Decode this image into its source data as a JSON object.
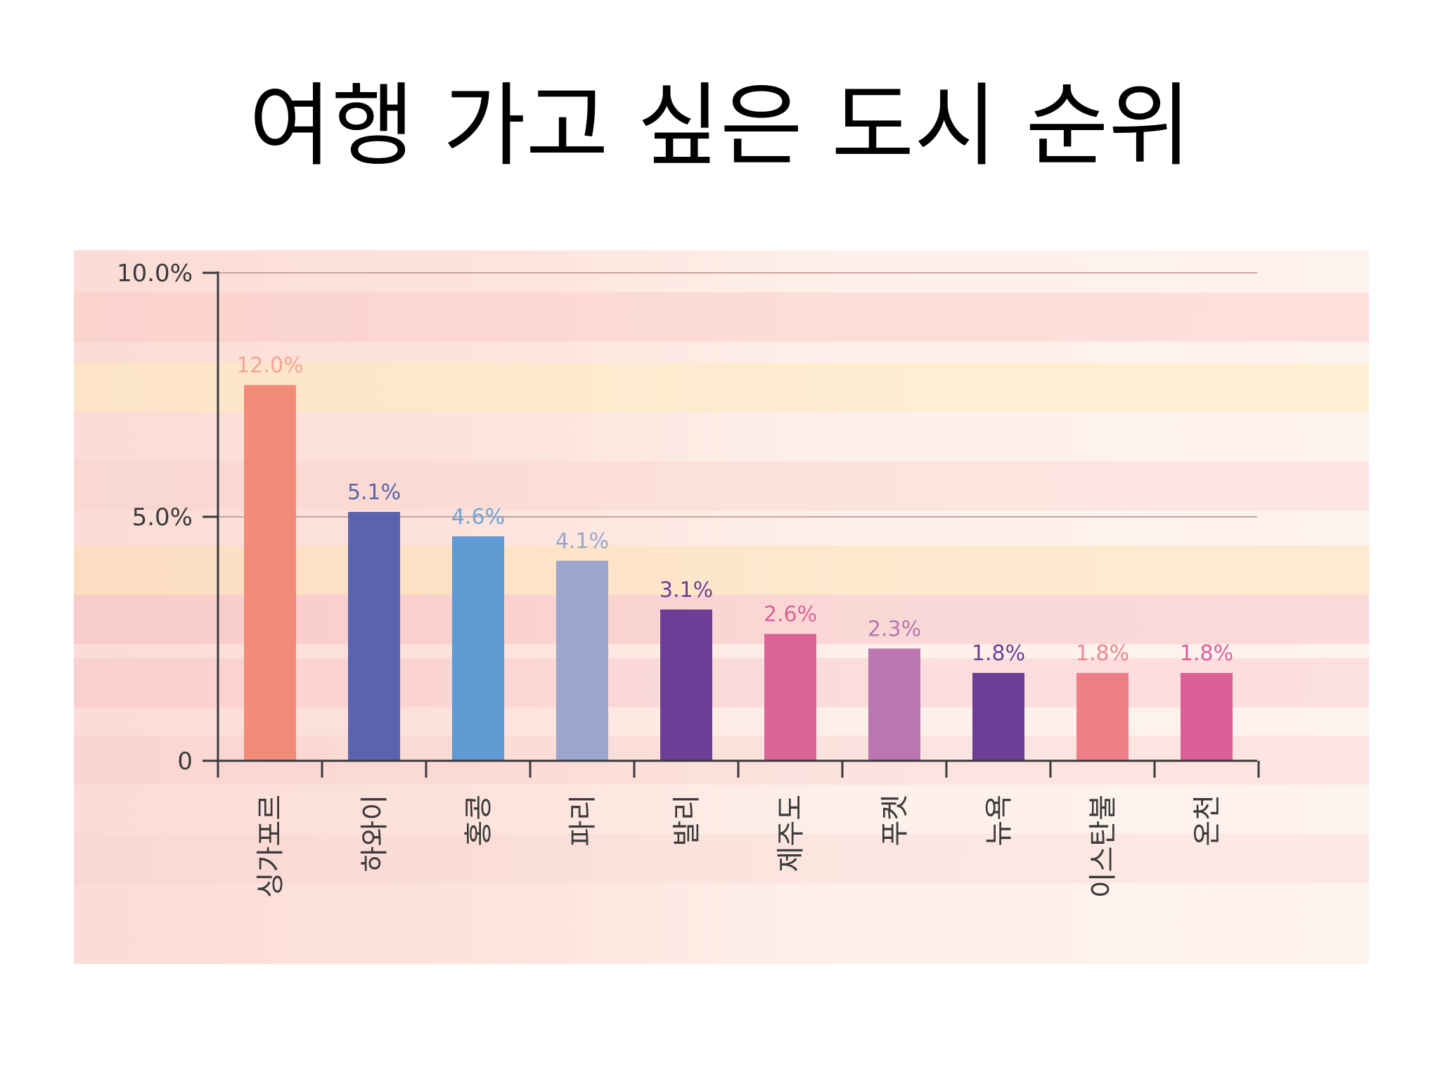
{
  "title": "여행 가고 싶은 도시 순위",
  "chart_data": {
    "type": "bar",
    "categories": [
      "싱가포르",
      "하와이",
      "홍콩",
      "파리",
      "발리",
      "제주도",
      "푸켓",
      "뉴욕",
      "이스탄불",
      "온천"
    ],
    "values": [
      12.0,
      5.1,
      4.6,
      4.1,
      3.1,
      2.6,
      2.3,
      1.8,
      1.8,
      1.8
    ],
    "value_labels": [
      "12.0%",
      "5.1%",
      "4.6%",
      "4.1%",
      "3.1%",
      "2.6%",
      "2.3%",
      "1.8%",
      "1.8%",
      "1.8%"
    ],
    "colors": [
      "#f08c78",
      "#5a63ae",
      "#5f9ad3",
      "#9ea6cd",
      "#6e3e96",
      "#dc6397",
      "#bb76b1",
      "#6e3e96",
      "#ef7f86",
      "#dc5f98"
    ],
    "label_colors": [
      "#f2a594",
      "#5a63ae",
      "#6ea6d9",
      "#9aa6cf",
      "#6e3e96",
      "#dc6397",
      "#b577ae",
      "#6e3e96",
      "#ef8590",
      "#dc5f98"
    ],
    "yticks": [
      0,
      5.0,
      10.0
    ],
    "ytick_labels": [
      "0",
      "5.0%",
      "10.0%"
    ],
    "ylim": [
      0,
      10.0
    ],
    "grid": true,
    "xlabel": "",
    "ylabel": ""
  }
}
